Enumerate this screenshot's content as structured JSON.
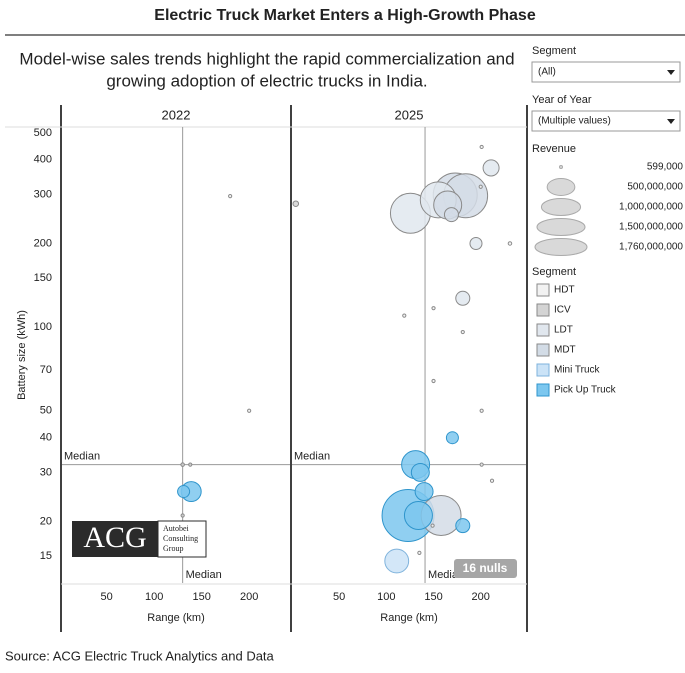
{
  "header": {
    "title": "Electric Truck Market Enters a High-Growth Phase",
    "subtitle": [
      "Model-wise sales trends highlight the rapid commercialization and",
      "growing adoption of electric trucks in India."
    ]
  },
  "filters": [
    {
      "label": "Segment",
      "value": "(All)"
    },
    {
      "label": "Year of Year",
      "value": "(Multiple values)"
    }
  ],
  "logo": {
    "mark": "ACG",
    "text": [
      "Autobei",
      "Consulting",
      "Group"
    ]
  },
  "source": "Source: ACG Electric Truck Analytics and Data",
  "chart_data": [
    {
      "type": "bubble",
      "title": "2022",
      "x_label": "Range (km)",
      "y_label": "Battery size (kWh)",
      "xlim": [
        3,
        243
      ],
      "xticks": [
        50,
        100,
        150,
        200
      ],
      "ylim": [
        12,
        525
      ],
      "yticks": [
        15,
        20,
        30,
        40,
        50,
        70,
        100,
        150,
        200,
        300,
        400,
        500
      ],
      "log_y": true,
      "median_x": 130,
      "median_y": 32,
      "median_label": "Median",
      "size_legend": {
        "title": "Revenue",
        "values": [
          {
            "value": 599000,
            "label": "599,000"
          },
          {
            "value": 500000000,
            "label": "500,000,000"
          },
          {
            "value": 1000000000,
            "label": "1,000,000,000"
          },
          {
            "value": 1500000000,
            "label": "1,500,000,000"
          },
          {
            "value": 1760000000,
            "label": "1,760,000,000"
          }
        ]
      },
      "legend_title": "Segment",
      "series": [
        {
          "name": "HDT",
          "color": "#f2f2f2",
          "x": [
            180,
            200
          ],
          "values": [
            296,
            50
          ],
          "sizes": [
            5000000,
            5000000
          ]
        },
        {
          "name": "ICV",
          "color": "#d4d4d4",
          "x": [
            130,
            138,
            130
          ],
          "values": [
            32,
            32,
            21
          ],
          "sizes": [
            8000000,
            4000000,
            4000000
          ]
        },
        {
          "name": "LDT",
          "color": "#e1e7ee",
          "x": [],
          "values": [],
          "sizes": []
        },
        {
          "name": "MDT",
          "color": "#d3dce6",
          "x": [],
          "values": [],
          "sizes": []
        },
        {
          "name": "Mini Truck",
          "color": "#cbe3f7",
          "x": [],
          "values": [],
          "sizes": []
        },
        {
          "name": "Pick Up Truck",
          "color": "#7cc7ef",
          "x": [
            139,
            131
          ],
          "values": [
            25.6,
            25.6
          ],
          "sizes": [
            260000000,
            94000000
          ]
        }
      ]
    },
    {
      "type": "bubble",
      "title": "2025",
      "x_label": "Range (km)",
      "xlim": [
        0,
        248
      ],
      "xticks": [
        50,
        100,
        150,
        200
      ],
      "ylim": [
        12,
        525
      ],
      "log_y": true,
      "median_x": 141,
      "median_y": 32,
      "median_label": "Median",
      "null_indicator": "16 nulls",
      "series": [
        {
          "name": "HDT",
          "color": "#f2f2f2",
          "x": [
            201,
            200,
            231,
            150,
            119,
            181,
            150,
            201,
            201,
            212,
            149,
            135
          ],
          "values": [
            445,
            320,
            200,
            117,
            110,
            96,
            64,
            50,
            32,
            28,
            19.3,
            15.4
          ],
          "sizes": [
            5000000,
            5000000,
            8000000,
            4000000,
            4000000,
            6000000,
            4000000,
            4000000,
            6000000,
            4000000,
            5000000,
            4000000
          ]
        },
        {
          "name": "ICV",
          "color": "#d4d4d4",
          "x": [
            4
          ],
          "values": [
            278
          ],
          "sizes": [
            20000000
          ]
        },
        {
          "name": "LDT",
          "color": "#e1e7ee",
          "x": [
            211,
            125.5,
            155,
            195,
            181
          ],
          "values": [
            374,
            257,
            287,
            200,
            127
          ],
          "sizes": [
            167000000,
            1040000000,
            840000000,
            94000000,
            128000000
          ]
        },
        {
          "name": "MDT",
          "color": "#d3dce6",
          "x": [
            173,
            184,
            165,
            169,
            158
          ],
          "values": [
            299,
            297,
            275,
            254,
            21
          ],
          "sizes": [
            1260000000,
            1260000000,
            510000000,
            128000000,
            1040000000
          ]
        },
        {
          "name": "Mini Truck",
          "color": "#cbe3f7",
          "x": [
            111
          ],
          "values": [
            14.4
          ],
          "sizes": [
            370000000
          ]
        },
        {
          "name": "Pick Up Truck",
          "color": "#7cc7ef",
          "x": [
            170,
            131,
            136,
            140,
            123,
            134,
            181
          ],
          "values": [
            40,
            32,
            30,
            25.6,
            21,
            21,
            19.3
          ],
          "sizes": [
            94000000,
            510000000,
            210000000,
            210000000,
            1760000000,
            510000000,
            128000000
          ]
        }
      ]
    }
  ]
}
